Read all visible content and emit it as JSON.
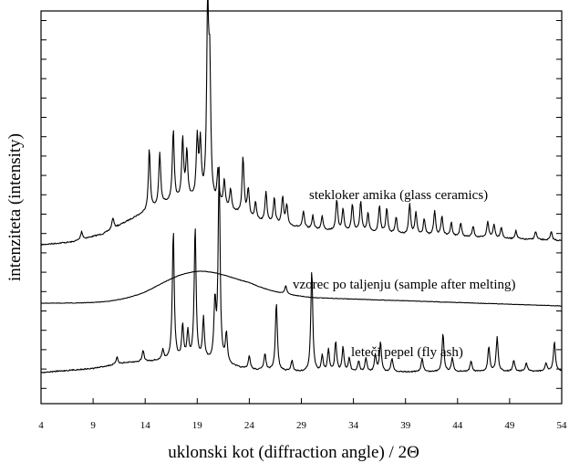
{
  "chart_data": {
    "type": "line",
    "xlabel": "uklonski kot (diffraction angle) / 2Θ",
    "ylabel": "intenziteta (intensity)",
    "xlim": [
      4,
      54
    ],
    "x_ticks": [
      "4",
      "9",
      "14",
      "19",
      "24",
      "29",
      "34",
      "39",
      "44",
      "49",
      "54"
    ],
    "y_ticks_labeled": false,
    "grid": false,
    "series": [
      {
        "name": "stekloker amika (glass ceramics)",
        "hump": {
          "center": 18.5,
          "width": 5.5,
          "height": 0.26
        },
        "baseline": [
          [
            4,
            0.0
          ],
          [
            7,
            0.02
          ],
          [
            10,
            0.08
          ],
          [
            13,
            0.2
          ],
          [
            16,
            0.3
          ],
          [
            19,
            0.33
          ],
          [
            22,
            0.25
          ],
          [
            25,
            0.17
          ],
          [
            30,
            0.11
          ],
          [
            40,
            0.07
          ],
          [
            50,
            0.04
          ],
          [
            54,
            0.03
          ]
        ],
        "peaks": [
          [
            7.9,
            0.06
          ],
          [
            10.9,
            0.08
          ],
          [
            14.4,
            0.45
          ],
          [
            15.4,
            0.38
          ],
          [
            16.7,
            0.52
          ],
          [
            17.6,
            0.45
          ],
          [
            18.0,
            0.35
          ],
          [
            19.0,
            0.42
          ],
          [
            19.3,
            0.4
          ],
          [
            20.0,
            1.38
          ],
          [
            20.2,
            0.9
          ],
          [
            21.0,
            0.25
          ],
          [
            21.6,
            0.2
          ],
          [
            22.2,
            0.15
          ],
          [
            23.4,
            0.42
          ],
          [
            23.9,
            0.2
          ],
          [
            24.6,
            0.12
          ],
          [
            25.6,
            0.22
          ],
          [
            26.4,
            0.18
          ],
          [
            27.2,
            0.2
          ],
          [
            27.6,
            0.14
          ],
          [
            29.2,
            0.12
          ],
          [
            30.1,
            0.1
          ],
          [
            31.0,
            0.1
          ],
          [
            32.4,
            0.22
          ],
          [
            33.0,
            0.16
          ],
          [
            33.9,
            0.2
          ],
          [
            34.7,
            0.22
          ],
          [
            35.4,
            0.14
          ],
          [
            36.5,
            0.2
          ],
          [
            37.2,
            0.18
          ],
          [
            38.1,
            0.12
          ],
          [
            39.4,
            0.22
          ],
          [
            40.0,
            0.16
          ],
          [
            40.8,
            0.12
          ],
          [
            41.8,
            0.18
          ],
          [
            42.5,
            0.14
          ],
          [
            43.4,
            0.1
          ],
          [
            44.3,
            0.1
          ],
          [
            45.5,
            0.08
          ],
          [
            46.9,
            0.12
          ],
          [
            47.5,
            0.1
          ],
          [
            48.2,
            0.08
          ],
          [
            49.6,
            0.06
          ],
          [
            51.5,
            0.06
          ],
          [
            53.0,
            0.06
          ]
        ]
      },
      {
        "name": "vzorec po taljenju (sample after melting)",
        "hump": {
          "center": 18.8,
          "width": 5.2,
          "height": 0.6
        },
        "baseline": [
          [
            4,
            0.0
          ],
          [
            14,
            0.0
          ],
          [
            24,
            0.08
          ],
          [
            30,
            0.04
          ],
          [
            54,
            -0.02
          ]
        ],
        "peaks": [
          [
            27.5,
            0.06
          ]
        ]
      },
      {
        "name": "leteči pepel (fly ash)",
        "hump": {
          "center": 17.0,
          "width": 5.0,
          "height": 0.28
        },
        "baseline": [
          [
            4,
            0.0
          ],
          [
            9,
            0.03
          ],
          [
            12,
            0.07
          ],
          [
            16,
            0.09
          ],
          [
            20,
            0.08
          ],
          [
            24,
            0.02
          ],
          [
            30,
            0.0
          ],
          [
            54,
            0.01
          ]
        ],
        "peaks": [
          [
            11.3,
            0.05
          ],
          [
            13.8,
            0.08
          ],
          [
            15.7,
            0.07
          ],
          [
            16.7,
            0.95
          ],
          [
            17.6,
            0.25
          ],
          [
            18.1,
            0.2
          ],
          [
            18.8,
            0.98
          ],
          [
            19.6,
            0.3
          ],
          [
            20.7,
            0.42
          ],
          [
            21.1,
            1.4
          ],
          [
            21.8,
            0.22
          ],
          [
            24.0,
            0.1
          ],
          [
            25.5,
            0.12
          ],
          [
            26.6,
            0.5
          ],
          [
            28.1,
            0.08
          ],
          [
            30.0,
            0.75
          ],
          [
            31.0,
            0.12
          ],
          [
            31.6,
            0.16
          ],
          [
            32.3,
            0.22
          ],
          [
            33.0,
            0.18
          ],
          [
            33.6,
            0.1
          ],
          [
            34.5,
            0.08
          ],
          [
            35.2,
            0.1
          ],
          [
            36.1,
            0.12
          ],
          [
            36.6,
            0.22
          ],
          [
            37.7,
            0.1
          ],
          [
            40.6,
            0.1
          ],
          [
            42.6,
            0.28
          ],
          [
            43.5,
            0.1
          ],
          [
            45.3,
            0.08
          ],
          [
            47.0,
            0.18
          ],
          [
            47.8,
            0.25
          ],
          [
            49.4,
            0.08
          ],
          [
            50.6,
            0.06
          ],
          [
            52.5,
            0.06
          ],
          [
            53.3,
            0.22
          ]
        ]
      }
    ]
  }
}
